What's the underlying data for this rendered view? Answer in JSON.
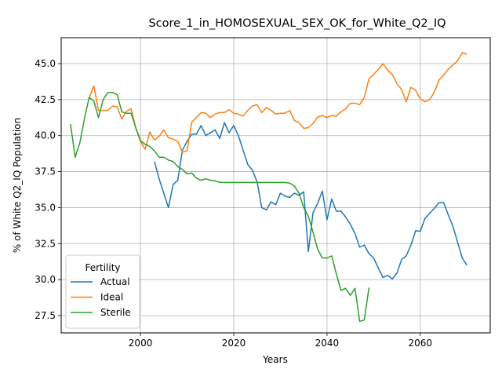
{
  "chart_data": {
    "type": "line",
    "title": "Score_1_in_HOMOSEXUAL_SEX_OK_for_White_Q2_IQ",
    "xlabel": "Years",
    "ylabel": "% of White Q2_IQ Population",
    "xlim": [
      1983,
      2075
    ],
    "ylim": [
      26.3,
      46.8
    ],
    "xticks": [
      2000,
      2020,
      2040,
      2060
    ],
    "yticks": [
      27.5,
      30.0,
      32.5,
      35.0,
      37.5,
      40.0,
      42.5,
      45.0
    ],
    "grid": true,
    "legend": {
      "title": "Fertility",
      "placement": "lower-left"
    },
    "series": [
      {
        "name": "Actual",
        "color": "#1f77b4",
        "x": [
          2003,
          2004,
          2005,
          2006,
          2007,
          2008,
          2009,
          2010,
          2011,
          2012,
          2013,
          2014,
          2015,
          2016,
          2017,
          2018,
          2019,
          2020,
          2021,
          2022,
          2023,
          2024,
          2025,
          2026,
          2027,
          2028,
          2029,
          2030,
          2031,
          2032,
          2033,
          2034,
          2035,
          2036,
          2037,
          2038,
          2039,
          2040,
          2041,
          2042,
          2043,
          2044,
          2045,
          2046,
          2047,
          2048,
          2049,
          2050,
          2051,
          2052,
          2053,
          2054,
          2055,
          2056,
          2057,
          2058,
          2059,
          2060,
          2061,
          2062,
          2063,
          2064,
          2065,
          2066,
          2067,
          2068,
          2069,
          2070
        ],
        "y": [
          38.2,
          37.0,
          36.0,
          35.0,
          36.6,
          36.9,
          39.0,
          39.6,
          40.1,
          40.1,
          40.7,
          40.0,
          40.2,
          40.4,
          39.8,
          40.9,
          40.2,
          40.7,
          40.0,
          39.0,
          38.0,
          37.6,
          36.8,
          35.0,
          34.85,
          35.4,
          35.2,
          36.0,
          35.8,
          35.7,
          36.0,
          35.85,
          36.1,
          31.95,
          34.65,
          35.3,
          36.15,
          34.15,
          35.6,
          34.75,
          34.75,
          34.35,
          33.85,
          33.2,
          32.25,
          32.4,
          31.8,
          31.5,
          30.8,
          30.15,
          30.3,
          30.05,
          30.45,
          31.4,
          31.65,
          32.4,
          33.4,
          33.35,
          34.25,
          34.6,
          34.95,
          35.35,
          35.35,
          34.5,
          33.7,
          32.6,
          31.5,
          31.0
        ]
      },
      {
        "name": "Ideal",
        "color": "#ff7f0e",
        "x": [
          1989,
          1990,
          1991,
          1992,
          1993,
          1994,
          1995,
          1996,
          1997,
          1998,
          1999,
          2000,
          2001,
          2002,
          2003,
          2004,
          2005,
          2006,
          2007,
          2008,
          2009,
          2010,
          2011,
          2012,
          2013,
          2014,
          2015,
          2016,
          2017,
          2018,
          2019,
          2020,
          2021,
          2022,
          2023,
          2024,
          2025,
          2026,
          2027,
          2028,
          2029,
          2030,
          2031,
          2032,
          2033,
          2034,
          2035,
          2036,
          2037,
          2038,
          2039,
          2040,
          2041,
          2042,
          2043,
          2044,
          2045,
          2046,
          2047,
          2048,
          2049,
          2050,
          2051,
          2052,
          2053,
          2054,
          2055,
          2056,
          2057,
          2058,
          2059,
          2060,
          2061,
          2062,
          2063,
          2064,
          2065,
          2066,
          2067,
          2068,
          2069,
          2070
        ],
        "y": [
          42.6,
          43.45,
          41.75,
          41.75,
          41.75,
          42.05,
          42.0,
          41.15,
          41.7,
          41.85,
          40.5,
          39.6,
          39.05,
          40.25,
          39.7,
          39.95,
          40.4,
          39.85,
          39.75,
          39.6,
          38.85,
          38.95,
          40.95,
          41.25,
          41.6,
          41.55,
          41.25,
          41.5,
          41.6,
          41.6,
          41.8,
          41.55,
          41.5,
          41.35,
          41.75,
          42.05,
          42.15,
          41.6,
          41.95,
          41.75,
          41.5,
          41.55,
          41.55,
          41.75,
          41.05,
          40.9,
          40.5,
          40.55,
          40.85,
          41.3,
          41.4,
          41.25,
          41.4,
          41.35,
          41.65,
          41.85,
          42.25,
          42.25,
          42.15,
          42.65,
          43.95,
          44.25,
          44.6,
          45.0,
          44.55,
          44.25,
          43.6,
          43.2,
          42.35,
          43.35,
          43.15,
          42.55,
          42.35,
          42.5,
          43.0,
          43.85,
          44.2,
          44.6,
          44.9,
          45.2,
          45.75,
          45.65
        ]
      },
      {
        "name": "Sterile",
        "color": "#2ca02c",
        "x": [
          1985,
          1986,
          1987,
          1988,
          1989,
          1990,
          1991,
          1992,
          1993,
          1994,
          1995,
          1996,
          1997,
          1998,
          1999,
          2000,
          2001,
          2002,
          2003,
          2004,
          2005,
          2006,
          2007,
          2008,
          2009,
          2010,
          2011,
          2012,
          2013,
          2014,
          2015,
          2016,
          2017,
          2018,
          2019,
          2020,
          2021,
          2022,
          2023,
          2024,
          2025,
          2026,
          2027,
          2028,
          2029,
          2030,
          2031,
          2032,
          2033,
          2034,
          2035,
          2036,
          2037,
          2038,
          2039,
          2040,
          2041,
          2042,
          2043,
          2044,
          2045,
          2046,
          2047,
          2048,
          2049
        ],
        "y": [
          40.8,
          38.5,
          39.5,
          41.2,
          42.65,
          42.4,
          41.25,
          42.5,
          43.0,
          43.0,
          42.85,
          41.65,
          41.55,
          41.55,
          40.55,
          39.65,
          39.4,
          39.25,
          38.95,
          38.5,
          38.5,
          38.3,
          38.2,
          37.85,
          37.65,
          37.35,
          37.4,
          37.05,
          36.9,
          37.0,
          36.9,
          36.85,
          36.75,
          36.75,
          36.75,
          36.75,
          36.75,
          36.75,
          36.75,
          36.75,
          36.75,
          36.75,
          36.75,
          36.75,
          36.75,
          36.75,
          36.75,
          36.7,
          36.5,
          36.0,
          35.0,
          34.4,
          33.3,
          32.1,
          31.5,
          31.5,
          31.65,
          30.4,
          29.25,
          29.4,
          28.9,
          29.4,
          27.1,
          27.2,
          29.45
        ]
      }
    ]
  }
}
